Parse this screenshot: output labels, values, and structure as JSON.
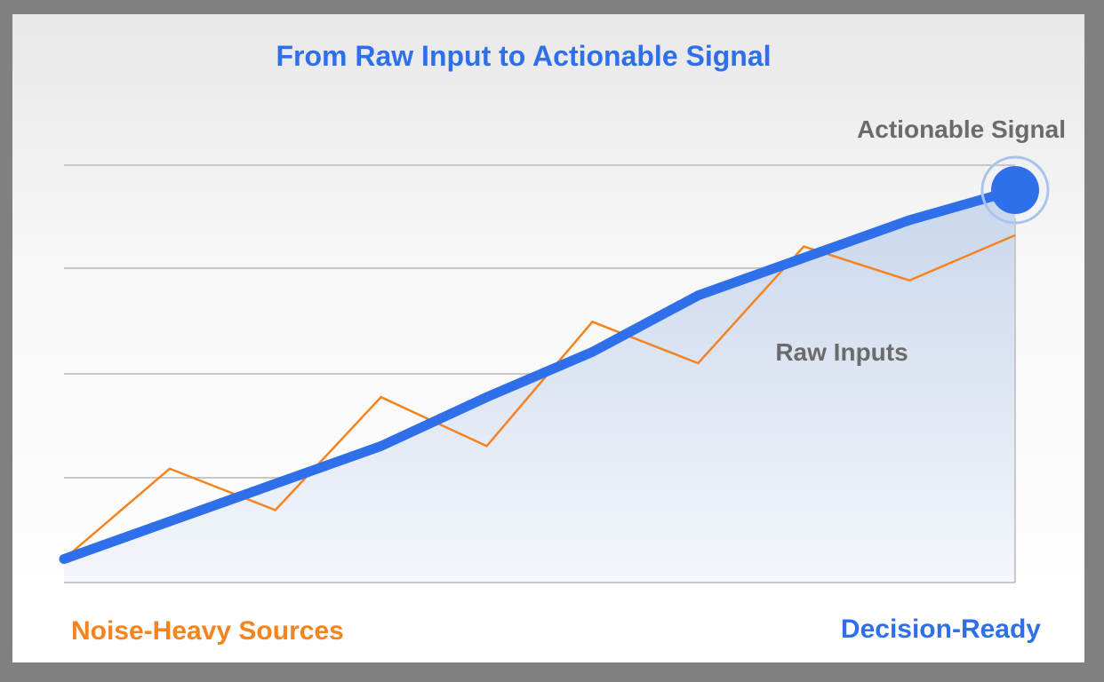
{
  "chart_data": {
    "type": "line",
    "title": "From Raw Input to Actionable Signal",
    "x": [
      0,
      1,
      2,
      3,
      4,
      5,
      6,
      7,
      8,
      9
    ],
    "ylim": [
      0,
      100
    ],
    "grid": true,
    "series": [
      {
        "values": [
          2,
          26,
          15,
          45,
          32,
          65,
          54,
          85,
          76,
          88
        ]
      },
      {
        "values": [
          2,
          12,
          22,
          32,
          45,
          57,
          72,
          82,
          92,
          100
        ]
      }
    ],
    "annotations": {
      "end_label": "Actionable Signal",
      "area_label": "Raw Inputs",
      "left_label": "Noise-Heavy Sources",
      "right_label": "Decision-Ready"
    },
    "colors": {
      "signal": "#2f6fea",
      "raw": "#f5841f",
      "grid": "#c8c8c8",
      "label_gray": "#6b6b6b",
      "area_top": "#c9d7ec",
      "area_bottom": "#f4f6fb"
    }
  }
}
